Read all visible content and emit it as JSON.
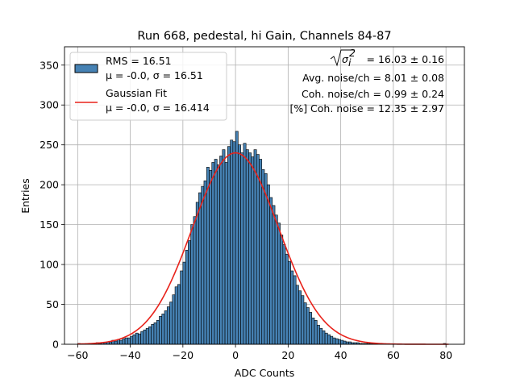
{
  "chart_data": {
    "type": "bar",
    "title": "Run 668, pedestal, hi Gain, Channels 84-87",
    "xlabel": "ADC Counts",
    "ylabel": "Entries",
    "xlim": [
      -65,
      87
    ],
    "ylim": [
      0,
      373
    ],
    "xticks": [
      -60,
      -40,
      -20,
      0,
      20,
      40,
      60,
      80
    ],
    "yticks": [
      0,
      50,
      100,
      150,
      200,
      250,
      300,
      350
    ],
    "grid": true,
    "legend_position": "top-left",
    "bin_width": 1,
    "bins": {
      "x_start": -60,
      "values": [
        1,
        0,
        0,
        0,
        0,
        1,
        1,
        2,
        1,
        2,
        2,
        3,
        3,
        5,
        4,
        6,
        5,
        7,
        8,
        8,
        10,
        12,
        14,
        13,
        16,
        18,
        20,
        22,
        25,
        27,
        30,
        35,
        38,
        42,
        47,
        53,
        62,
        72,
        75,
        92,
        103,
        118,
        130,
        150,
        160,
        178,
        190,
        198,
        205,
        222,
        218,
        228,
        232,
        225,
        236,
        244,
        228,
        248,
        256,
        254,
        267,
        250,
        240,
        252,
        244,
        240,
        235,
        244,
        238,
        232,
        219,
        214,
        200,
        184,
        174,
        162,
        152,
        137,
        125,
        113,
        104,
        92,
        86,
        74,
        67,
        61,
        52,
        46,
        40,
        33,
        30,
        24,
        20,
        17,
        14,
        12,
        10,
        8,
        7,
        6,
        5,
        4,
        3,
        3,
        2,
        2,
        2,
        1,
        1,
        1,
        1,
        1,
        1,
        1,
        0,
        0,
        0,
        0,
        0,
        0,
        0,
        0,
        0,
        0,
        0,
        0,
        0,
        0,
        0,
        0,
        0,
        0,
        0,
        0,
        0,
        0,
        0,
        0,
        0,
        1
      ]
    },
    "series": [
      {
        "name": "RMS = 16.51",
        "sub": "μ = -0.0, σ = 16.51",
        "type": "histogram",
        "color": "#4682b4",
        "edge": "#000000"
      },
      {
        "name": "Gaussian Fit",
        "sub": "μ = -0.0, σ = 16.414",
        "type": "line",
        "color": "#e8221a",
        "mu": 0.0,
        "sigma": 16.414,
        "amplitude": 240
      }
    ],
    "annotations": [
      {
        "radicand": "σ",
        "sup": "2",
        "sub": "i",
        "value": " = 16.03 ± 0.16"
      },
      {
        "text": "Avg. noise/ch = 8.01 ± 0.08"
      },
      {
        "text": "Coh. noise/ch = 0.99 ± 0.24"
      },
      {
        "text": "[%] Coh. noise = 12.35 ± 2.97"
      }
    ]
  }
}
